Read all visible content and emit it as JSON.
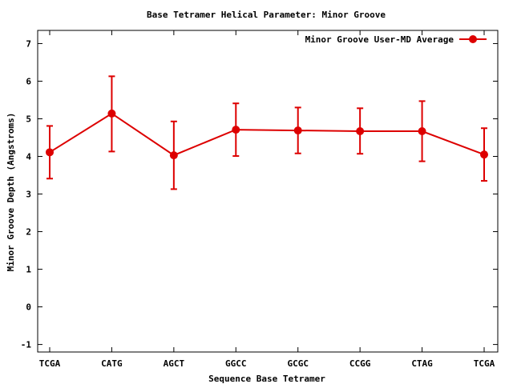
{
  "chart_data": {
    "type": "line",
    "title": "Base Tetramer Helical Parameter: Minor Groove",
    "xlabel": "Sequence Base Tetramer",
    "ylabel": "Minor Groove Depth (Angstroms)",
    "categories": [
      "TCGA",
      "CATG",
      "AGCT",
      "GGCC",
      "GCGC",
      "CCGG",
      "CTAG",
      "TCGA"
    ],
    "yticks": [
      -1,
      0,
      1,
      2,
      3,
      4,
      5,
      6,
      7
    ],
    "ylim": [
      -1.2,
      7.35
    ],
    "grid": false,
    "legend_position": "top-right",
    "series": [
      {
        "name": "Minor Groove User-MD Average",
        "color": "#dd0000",
        "marker": "circle",
        "values": [
          4.11,
          5.14,
          4.03,
          4.71,
          4.69,
          4.67,
          4.67,
          4.05
        ],
        "error_low": [
          3.41,
          4.13,
          3.13,
          4.01,
          4.08,
          4.07,
          3.87,
          3.35
        ],
        "error_high": [
          4.81,
          6.13,
          4.93,
          5.41,
          5.3,
          5.28,
          5.47,
          4.75
        ]
      }
    ]
  }
}
